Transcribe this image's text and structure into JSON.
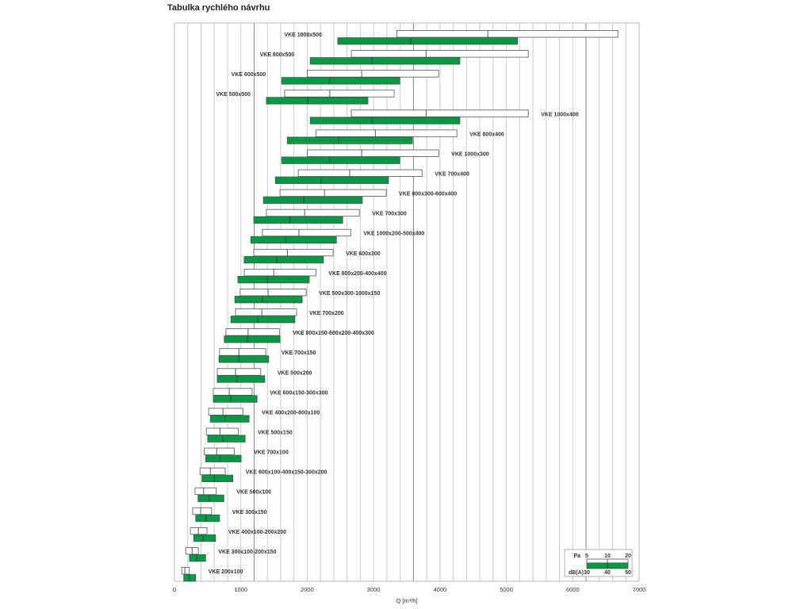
{
  "chart_data": {
    "type": "bar",
    "subtype": "horizontal-range",
    "title": "Tabulka rychlého návrhu",
    "xlabel": "Q [m³/h]",
    "ylabel": "",
    "xlim": [
      0,
      7000
    ],
    "xticks": [
      0,
      1000,
      2000,
      3000,
      4000,
      5000,
      6000,
      7000
    ],
    "grid": true,
    "grid_step": 200,
    "legend": {
      "placement": "bottom-right",
      "pressure_label": "Pa",
      "pressure_ticks": [
        "5",
        "10",
        "20"
      ],
      "noise_label": "dB(A)",
      "noise_ticks": [
        "30",
        "40",
        "50"
      ]
    },
    "colors": {
      "pressure_bar": "#ffffff",
      "noise_bar": "#009a44",
      "outline": "#555555",
      "grid": "#cccccc"
    },
    "rows": [
      {
        "label": "VKE 1000x500",
        "pa": [
          3350,
          4720,
          6680
        ],
        "dba": [
          2460,
          3560,
          5170
        ]
      },
      {
        "label": "VKE 800x500",
        "pa": [
          2665,
          3790,
          5330
        ],
        "dba": [
          2045,
          2975,
          4300
        ]
      },
      {
        "label": "VKE 600x500",
        "pa": [
          2000,
          2820,
          3980
        ],
        "dba": [
          1615,
          2340,
          3395
        ]
      },
      {
        "label": "VKE 500x500",
        "pa": [
          1660,
          2340,
          3310
        ],
        "dba": [
          1385,
          2010,
          2915
        ]
      },
      {
        "label": "VKE 1000x400",
        "pa": [
          2665,
          3790,
          5330
        ],
        "dba": [
          2045,
          2975,
          4300
        ]
      },
      {
        "label": "VKE 800x400",
        "pa": [
          2130,
          3025,
          4255
        ],
        "dba": [
          1700,
          2475,
          3585
        ]
      },
      {
        "label": "VKE 1000x300",
        "pa": [
          2000,
          2820,
          3980
        ],
        "dba": [
          1615,
          2340,
          3395
        ]
      },
      {
        "label": "VKE 700x400",
        "pa": [
          1865,
          2640,
          3730
        ],
        "dba": [
          1520,
          2210,
          3225
        ]
      },
      {
        "label": "VKE 800x300-600x400",
        "pa": [
          1590,
          2260,
          3190
        ],
        "dba": [
          1340,
          1950,
          2830
        ]
      },
      {
        "label": "VKE 700x300",
        "pa": [
          1385,
          1960,
          2785
        ],
        "dba": [
          1195,
          1735,
          2535
        ]
      },
      {
        "label": "VKE 1000x200-500x400",
        "pa": [
          1325,
          1875,
          2655
        ],
        "dba": [
          1150,
          1675,
          2440
        ]
      },
      {
        "label": "VKE 600x300",
        "pa": [
          1195,
          1700,
          2390
        ],
        "dba": [
          1050,
          1540,
          2245
        ]
      },
      {
        "label": "VKE 800x200-400x400",
        "pa": [
          1050,
          1495,
          2130
        ],
        "dba": [
          955,
          1400,
          2030
        ]
      },
      {
        "label": "VKE 500x300-1000x150",
        "pa": [
          990,
          1410,
          1985
        ],
        "dba": [
          910,
          1325,
          1925
        ]
      },
      {
        "label": "VKE 700x200",
        "pa": [
          920,
          1315,
          1840
        ],
        "dba": [
          850,
          1255,
          1815
        ]
      },
      {
        "label": "VKE 800x150-600x200-400x300",
        "pa": [
          775,
          1110,
          1580
        ],
        "dba": [
          750,
          1100,
          1590
        ]
      },
      {
        "label": "VKE 700x150",
        "pa": [
          680,
          970,
          1375
        ],
        "dba": [
          670,
          970,
          1420
        ]
      },
      {
        "label": "VKE 500x200",
        "pa": [
          645,
          920,
          1300
        ],
        "dba": [
          645,
          945,
          1360
        ]
      },
      {
        "label": "VKE 600x150-300x300",
        "pa": [
          585,
          825,
          1170
        ],
        "dba": [
          585,
          850,
          1245
        ]
      },
      {
        "label": "VKE 400x200-800x100",
        "pa": [
          515,
          730,
          1030
        ],
        "dba": [
          540,
          765,
          1125
        ]
      },
      {
        "label": "VKE 500x150",
        "pa": [
          480,
          685,
          960
        ],
        "dba": [
          500,
          730,
          1065
        ]
      },
      {
        "label": "VKE 700x100",
        "pa": [
          450,
          635,
          900
        ],
        "dba": [
          470,
          690,
          1005
        ]
      },
      {
        "label": "VKE 600x100-400x150-300x200",
        "pa": [
          385,
          540,
          765
        ],
        "dba": [
          415,
          600,
          880
        ]
      },
      {
        "label": "VKE 500x100",
        "pa": [
          310,
          440,
          630
        ],
        "dba": [
          355,
          525,
          745
        ]
      },
      {
        "label": "VKE 300x150",
        "pa": [
          275,
          395,
          560
        ],
        "dba": [
          320,
          475,
          680
        ]
      },
      {
        "label": "VKE 400x100-200x200",
        "pa": [
          240,
          360,
          490
        ],
        "dba": [
          290,
          430,
          620
        ]
      },
      {
        "label": "VKE 300x100-200x150",
        "pa": [
          170,
          265,
          360
        ],
        "dba": [
          225,
          335,
          470
        ]
      },
      {
        "label": "VKE 200x100",
        "pa": [
          110,
          155,
          225
        ],
        "dba": [
          140,
          225,
          320
        ]
      }
    ]
  }
}
